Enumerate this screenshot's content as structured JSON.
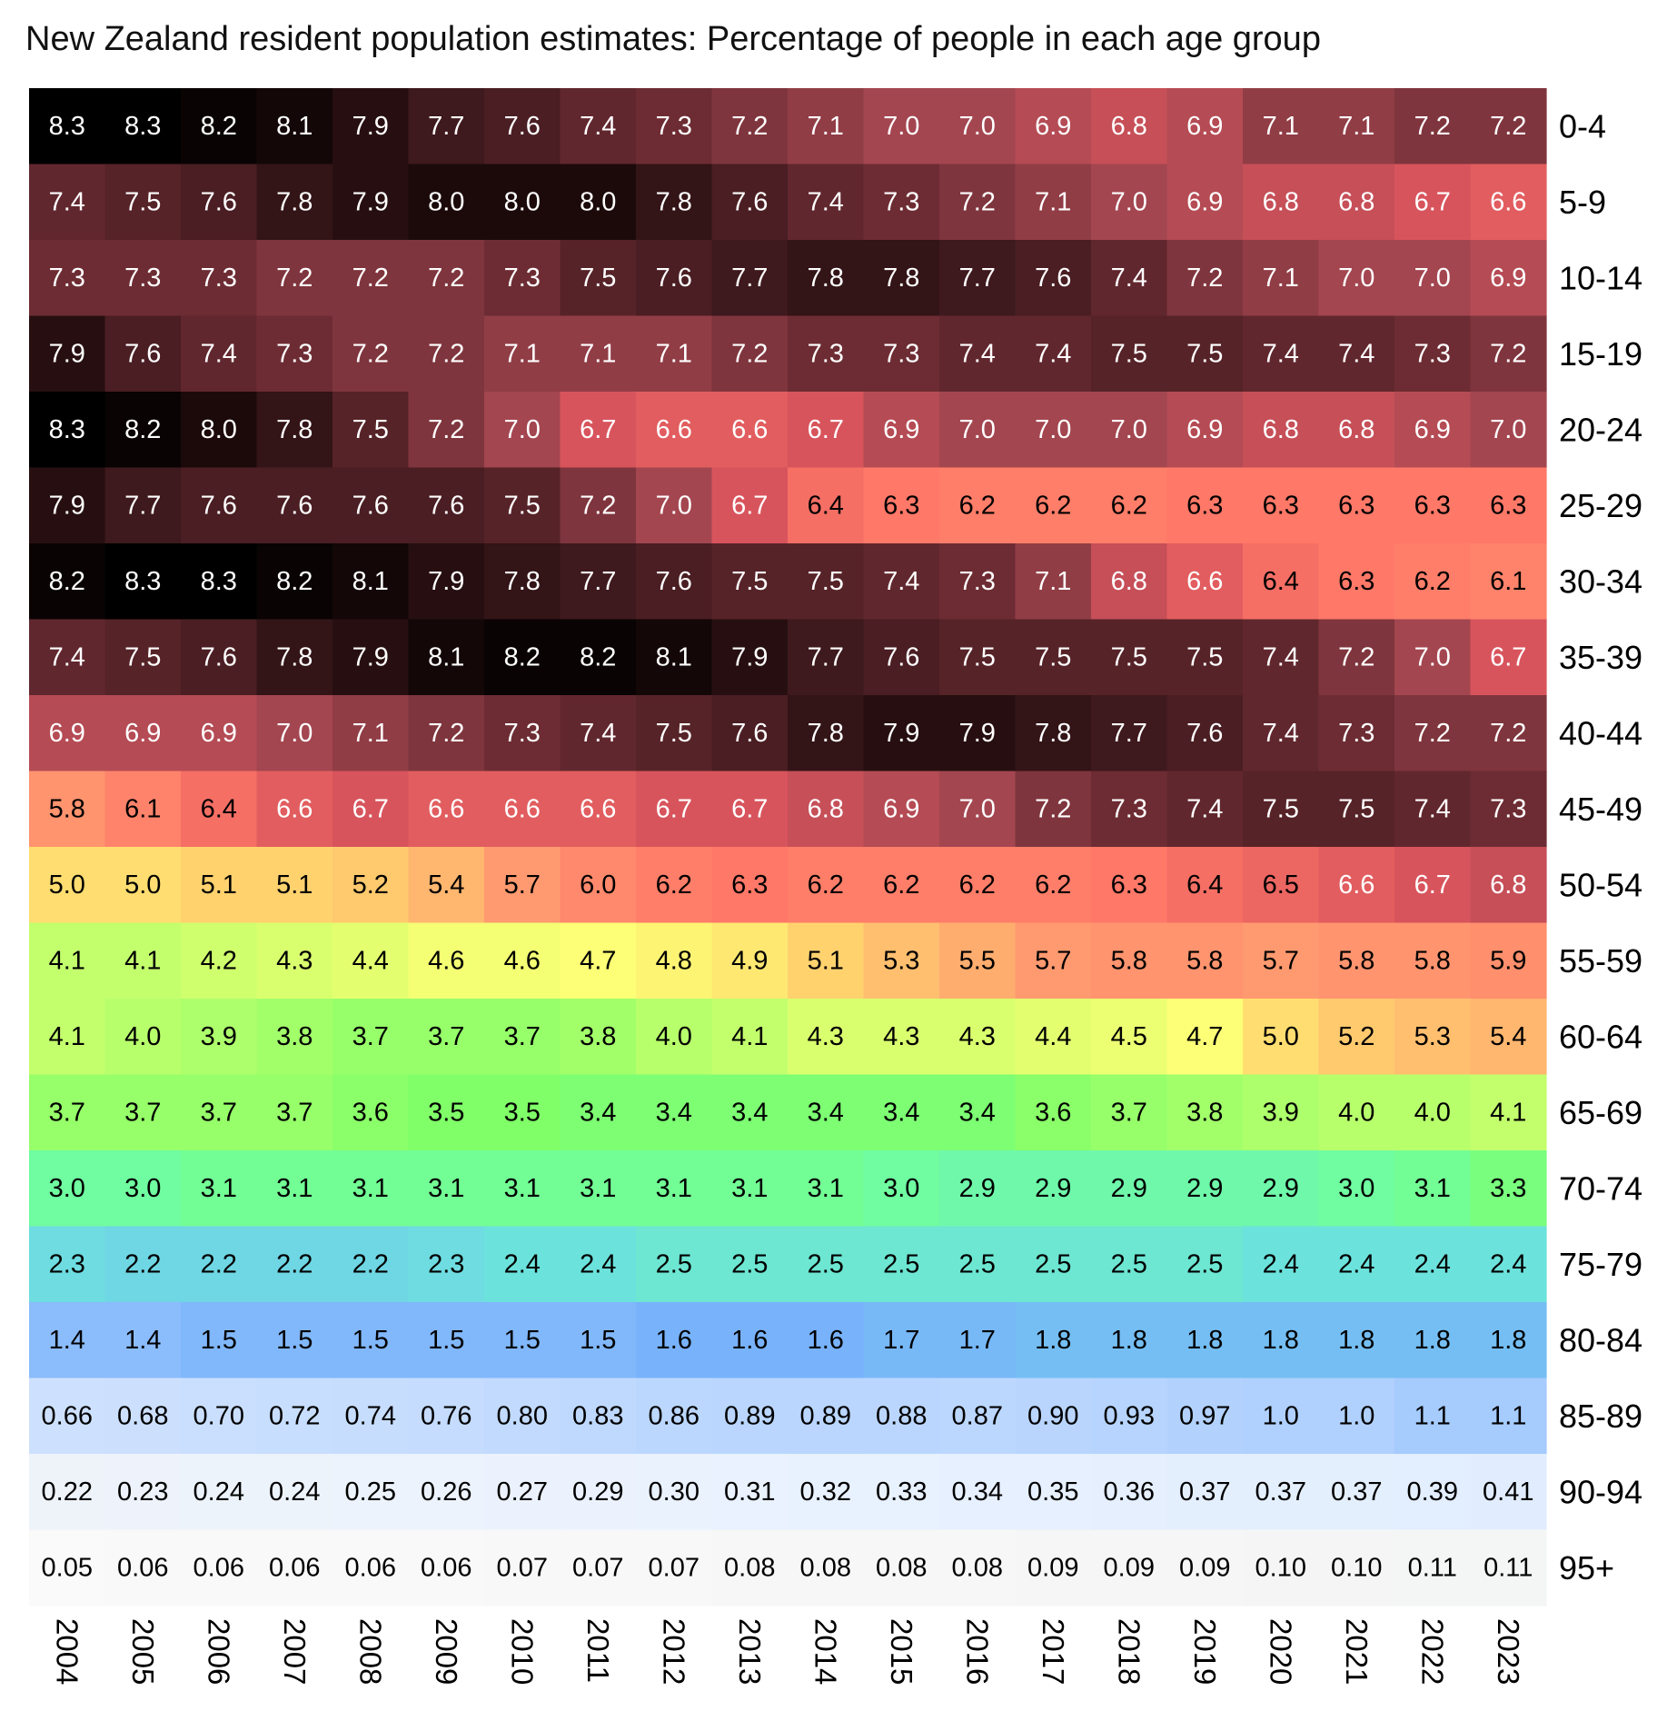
{
  "chart_data": {
    "type": "heatmap",
    "title": "New Zealand resident population estimates: Percentage of people in each age group",
    "x": [
      "2004",
      "2005",
      "2006",
      "2007",
      "2008",
      "2009",
      "2010",
      "2011",
      "2012",
      "2013",
      "2014",
      "2015",
      "2016",
      "2017",
      "2018",
      "2019",
      "2020",
      "2021",
      "2022",
      "2023"
    ],
    "y": [
      "0-4",
      "5-9",
      "10-14",
      "15-19",
      "20-24",
      "25-29",
      "30-34",
      "35-39",
      "40-44",
      "45-49",
      "50-54",
      "55-59",
      "60-64",
      "65-69",
      "70-74",
      "75-79",
      "80-84",
      "85-89",
      "90-94",
      "95+"
    ],
    "values": [
      [
        "8.3",
        "8.3",
        "8.2",
        "8.1",
        "7.9",
        "7.7",
        "7.6",
        "7.4",
        "7.3",
        "7.2",
        "7.1",
        "7.0",
        "7.0",
        "6.9",
        "6.8",
        "6.9",
        "7.1",
        "7.1",
        "7.2",
        "7.2"
      ],
      [
        "7.4",
        "7.5",
        "7.6",
        "7.8",
        "7.9",
        "8.0",
        "8.0",
        "8.0",
        "7.8",
        "7.6",
        "7.4",
        "7.3",
        "7.2",
        "7.1",
        "7.0",
        "6.9",
        "6.8",
        "6.8",
        "6.7",
        "6.6"
      ],
      [
        "7.3",
        "7.3",
        "7.3",
        "7.2",
        "7.2",
        "7.2",
        "7.3",
        "7.5",
        "7.6",
        "7.7",
        "7.8",
        "7.8",
        "7.7",
        "7.6",
        "7.4",
        "7.2",
        "7.1",
        "7.0",
        "7.0",
        "6.9"
      ],
      [
        "7.9",
        "7.6",
        "7.4",
        "7.3",
        "7.2",
        "7.2",
        "7.1",
        "7.1",
        "7.1",
        "7.2",
        "7.3",
        "7.3",
        "7.4",
        "7.4",
        "7.5",
        "7.5",
        "7.4",
        "7.4",
        "7.3",
        "7.2"
      ],
      [
        "8.3",
        "8.2",
        "8.0",
        "7.8",
        "7.5",
        "7.2",
        "7.0",
        "6.7",
        "6.6",
        "6.6",
        "6.7",
        "6.9",
        "7.0",
        "7.0",
        "7.0",
        "6.9",
        "6.8",
        "6.8",
        "6.9",
        "7.0"
      ],
      [
        "7.9",
        "7.7",
        "7.6",
        "7.6",
        "7.6",
        "7.6",
        "7.5",
        "7.2",
        "7.0",
        "6.7",
        "6.4",
        "6.3",
        "6.2",
        "6.2",
        "6.2",
        "6.3",
        "6.3",
        "6.3",
        "6.3",
        "6.3"
      ],
      [
        "8.2",
        "8.3",
        "8.3",
        "8.2",
        "8.1",
        "7.9",
        "7.8",
        "7.7",
        "7.6",
        "7.5",
        "7.5",
        "7.4",
        "7.3",
        "7.1",
        "6.8",
        "6.6",
        "6.4",
        "6.3",
        "6.2",
        "6.1"
      ],
      [
        "7.4",
        "7.5",
        "7.6",
        "7.8",
        "7.9",
        "8.1",
        "8.2",
        "8.2",
        "8.1",
        "7.9",
        "7.7",
        "7.6",
        "7.5",
        "7.5",
        "7.5",
        "7.5",
        "7.4",
        "7.2",
        "7.0",
        "6.7"
      ],
      [
        "6.9",
        "6.9",
        "6.9",
        "7.0",
        "7.1",
        "7.2",
        "7.3",
        "7.4",
        "7.5",
        "7.6",
        "7.8",
        "7.9",
        "7.9",
        "7.8",
        "7.7",
        "7.6",
        "7.4",
        "7.3",
        "7.2",
        "7.2"
      ],
      [
        "5.8",
        "6.1",
        "6.4",
        "6.6",
        "6.7",
        "6.6",
        "6.6",
        "6.6",
        "6.7",
        "6.7",
        "6.8",
        "6.9",
        "7.0",
        "7.2",
        "7.3",
        "7.4",
        "7.5",
        "7.5",
        "7.4",
        "7.3"
      ],
      [
        "5.0",
        "5.0",
        "5.1",
        "5.1",
        "5.2",
        "5.4",
        "5.7",
        "6.0",
        "6.2",
        "6.3",
        "6.2",
        "6.2",
        "6.2",
        "6.2",
        "6.3",
        "6.4",
        "6.5",
        "6.6",
        "6.7",
        "6.8"
      ],
      [
        "4.1",
        "4.1",
        "4.2",
        "4.3",
        "4.4",
        "4.6",
        "4.6",
        "4.7",
        "4.8",
        "4.9",
        "5.1",
        "5.3",
        "5.5",
        "5.7",
        "5.8",
        "5.8",
        "5.7",
        "5.8",
        "5.8",
        "5.9"
      ],
      [
        "4.1",
        "4.0",
        "3.9",
        "3.8",
        "3.7",
        "3.7",
        "3.7",
        "3.8",
        "4.0",
        "4.1",
        "4.3",
        "4.3",
        "4.3",
        "4.4",
        "4.5",
        "4.7",
        "5.0",
        "5.2",
        "5.3",
        "5.4"
      ],
      [
        "3.7",
        "3.7",
        "3.7",
        "3.7",
        "3.6",
        "3.5",
        "3.5",
        "3.4",
        "3.4",
        "3.4",
        "3.4",
        "3.4",
        "3.4",
        "3.6",
        "3.7",
        "3.8",
        "3.9",
        "4.0",
        "4.0",
        "4.1"
      ],
      [
        "3.0",
        "3.0",
        "3.1",
        "3.1",
        "3.1",
        "3.1",
        "3.1",
        "3.1",
        "3.1",
        "3.1",
        "3.1",
        "3.0",
        "2.9",
        "2.9",
        "2.9",
        "2.9",
        "2.9",
        "3.0",
        "3.1",
        "3.3"
      ],
      [
        "2.3",
        "2.2",
        "2.2",
        "2.2",
        "2.2",
        "2.3",
        "2.4",
        "2.4",
        "2.5",
        "2.5",
        "2.5",
        "2.5",
        "2.5",
        "2.5",
        "2.5",
        "2.5",
        "2.4",
        "2.4",
        "2.4",
        "2.4"
      ],
      [
        "1.4",
        "1.4",
        "1.5",
        "1.5",
        "1.5",
        "1.5",
        "1.5",
        "1.5",
        "1.6",
        "1.6",
        "1.6",
        "1.7",
        "1.7",
        "1.8",
        "1.8",
        "1.8",
        "1.8",
        "1.8",
        "1.8",
        "1.8"
      ],
      [
        "0.66",
        "0.68",
        "0.70",
        "0.72",
        "0.74",
        "0.76",
        "0.80",
        "0.83",
        "0.86",
        "0.89",
        "0.89",
        "0.88",
        "0.87",
        "0.90",
        "0.93",
        "0.97",
        "1.0",
        "1.0",
        "1.1",
        "1.1"
      ],
      [
        "0.22",
        "0.23",
        "0.24",
        "0.24",
        "0.25",
        "0.26",
        "0.27",
        "0.29",
        "0.30",
        "0.31",
        "0.32",
        "0.33",
        "0.34",
        "0.35",
        "0.36",
        "0.37",
        "0.37",
        "0.37",
        "0.39",
        "0.41"
      ],
      [
        "0.05",
        "0.06",
        "0.06",
        "0.06",
        "0.06",
        "0.06",
        "0.07",
        "0.07",
        "0.07",
        "0.08",
        "0.08",
        "0.08",
        "0.08",
        "0.09",
        "0.09",
        "0.09",
        "0.10",
        "0.10",
        "0.11",
        "0.11"
      ]
    ],
    "color_scale": [
      {
        "v": 0.0,
        "color": "#ffffff"
      },
      {
        "v": 0.1,
        "color": "#f5f5f5"
      },
      {
        "v": 0.3,
        "color": "#eaf2fe"
      },
      {
        "v": 0.8,
        "color": "#c2dafe"
      },
      {
        "v": 1.6,
        "color": "#78b2fb"
      },
      {
        "v": 2.4,
        "color": "#6ce2dc"
      },
      {
        "v": 3.0,
        "color": "#70fca0"
      },
      {
        "v": 3.5,
        "color": "#80ff68"
      },
      {
        "v": 4.3,
        "color": "#daff6e"
      },
      {
        "v": 4.7,
        "color": "#fdff76"
      },
      {
        "v": 5.1,
        "color": "#ffd26e"
      },
      {
        "v": 5.7,
        "color": "#ff9a70"
      },
      {
        "v": 6.3,
        "color": "#ff7868"
      },
      {
        "v": 6.7,
        "color": "#d8545c"
      },
      {
        "v": 7.0,
        "color": "#a34650"
      },
      {
        "v": 7.3,
        "color": "#6d2c33"
      },
      {
        "v": 7.6,
        "color": "#4a1e23"
      },
      {
        "v": 8.0,
        "color": "#1c0a0b"
      },
      {
        "v": 8.3,
        "color": "#000000"
      }
    ]
  }
}
